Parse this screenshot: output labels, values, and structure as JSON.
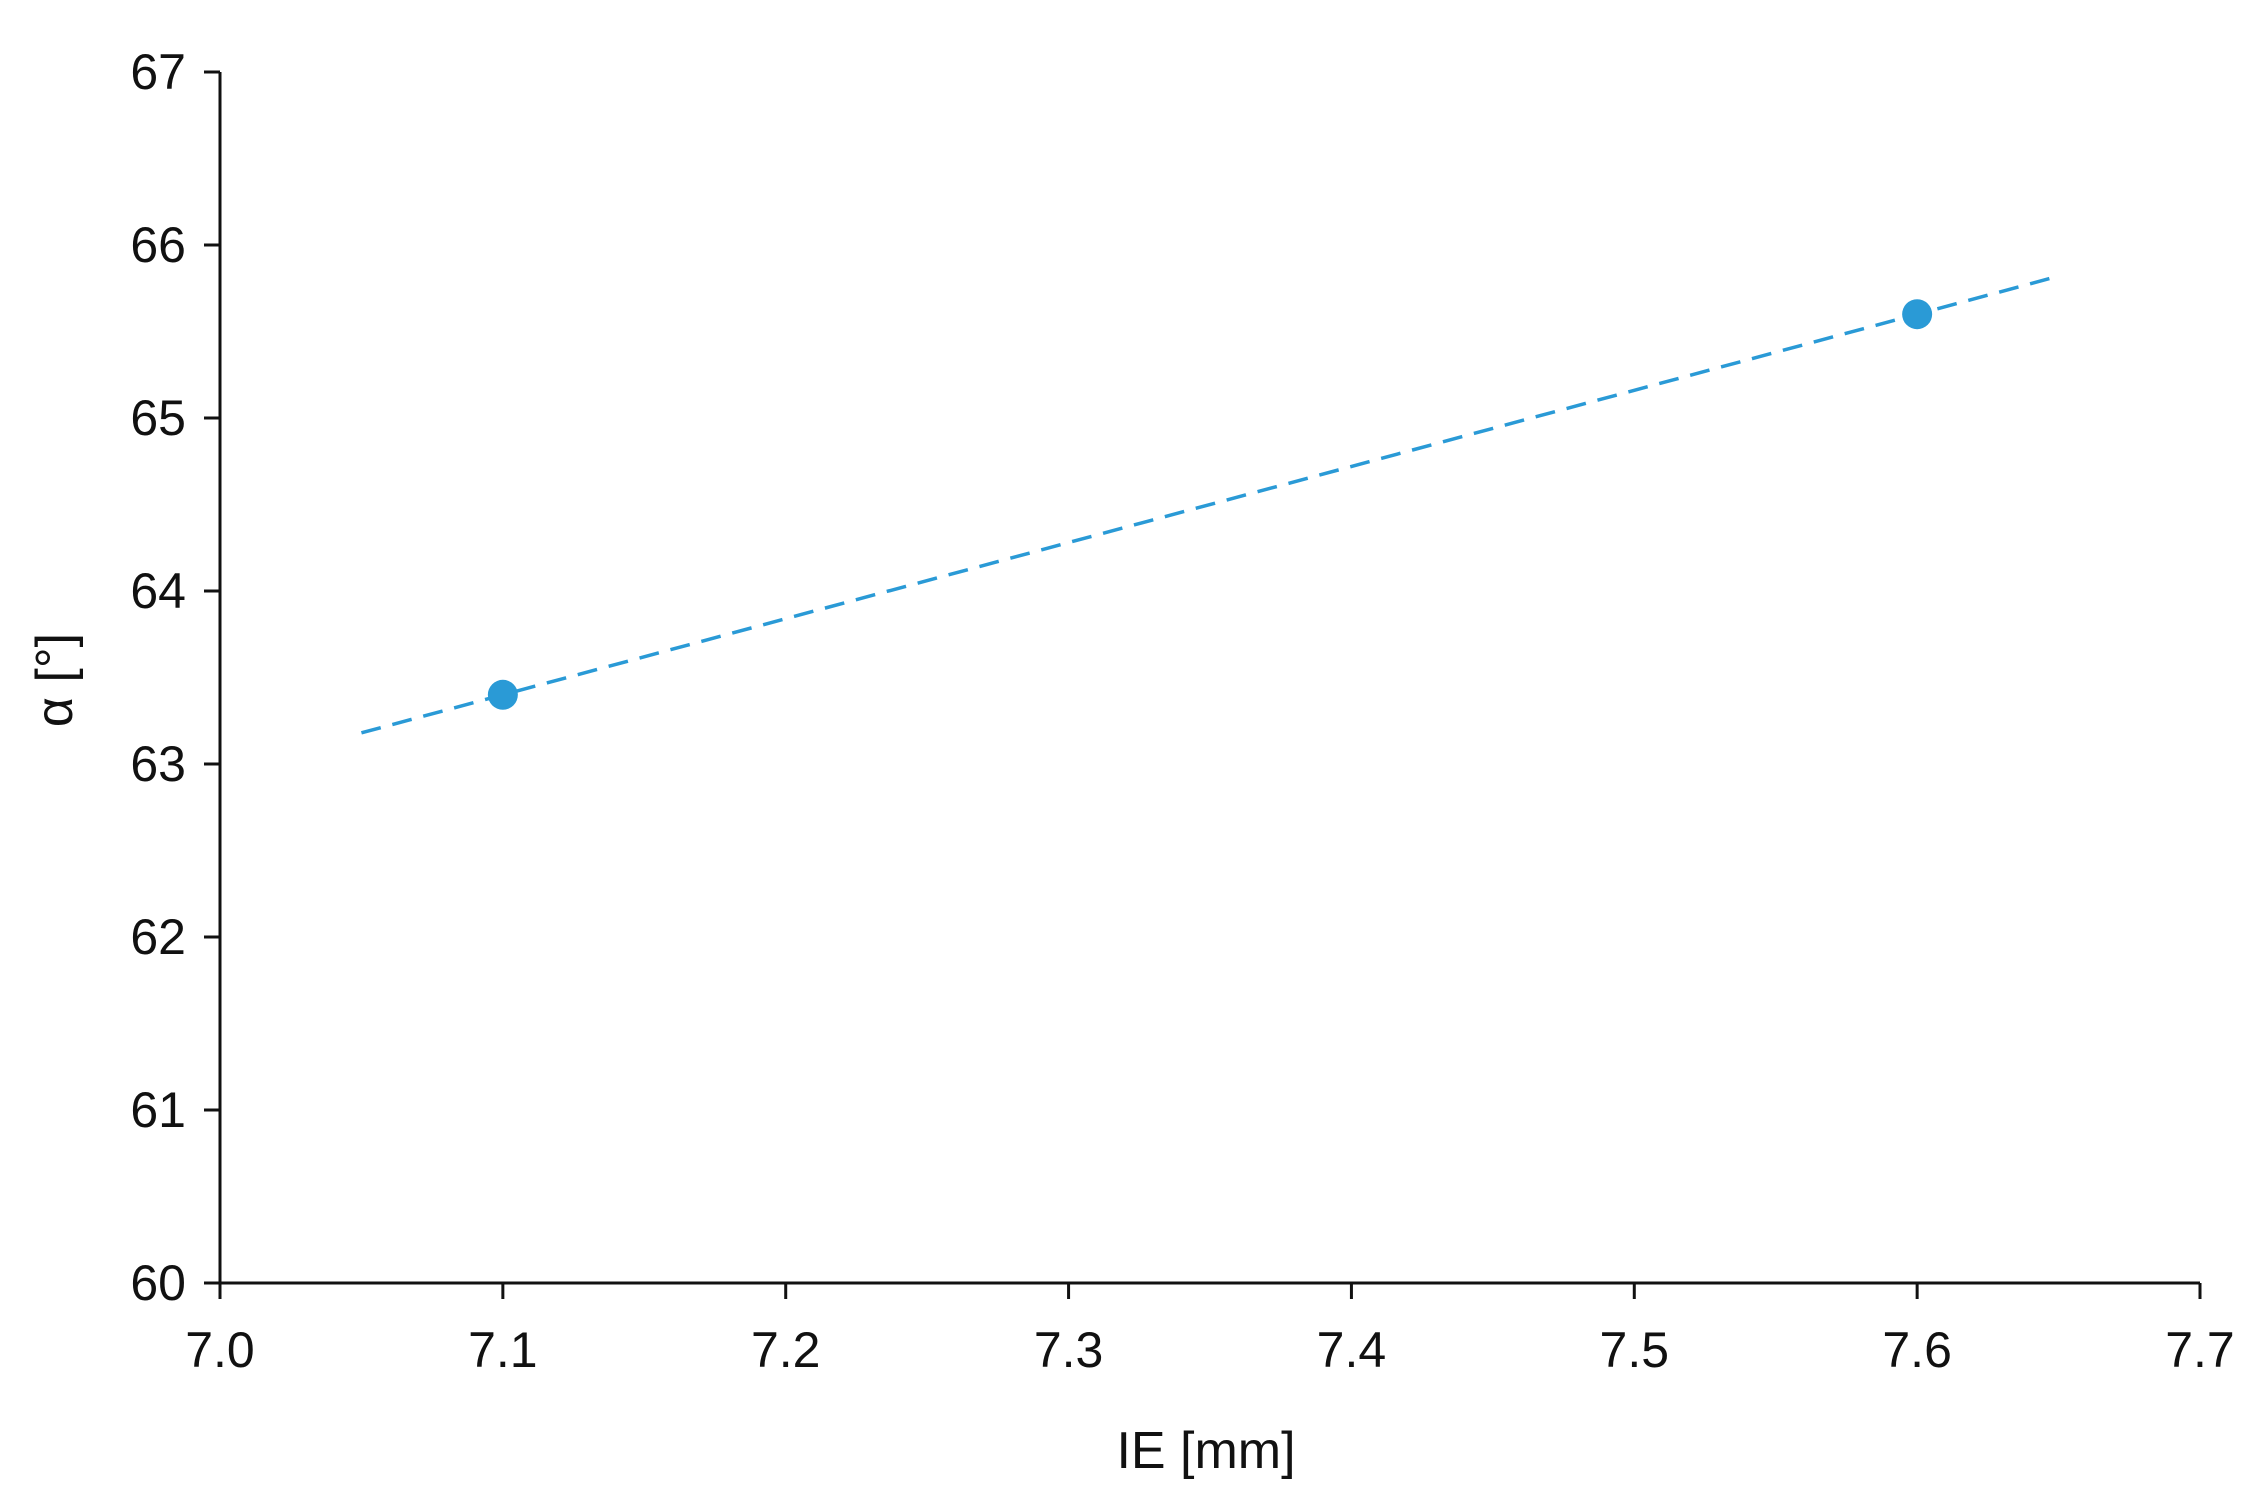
{
  "chart_data": {
    "type": "scatter",
    "title": "",
    "xlabel": "IE  [mm]",
    "ylabel": "α  [°]",
    "xlim": [
      7.0,
      7.7
    ],
    "ylim": [
      60,
      67
    ],
    "xticks": [
      "7.0",
      "7.1",
      "7.2",
      "7.3",
      "7.4",
      "7.5",
      "7.6",
      "7.7"
    ],
    "yticks": [
      "60",
      "61",
      "62",
      "63",
      "64",
      "65",
      "66",
      "67"
    ],
    "grid": false,
    "legend": "none",
    "series": [
      {
        "points": [
          {
            "x": 7.1,
            "y": 63.4
          },
          {
            "x": 7.6,
            "y": 65.6
          }
        ],
        "color": "#2a9ad6",
        "marker": "circle"
      }
    ],
    "trendline": {
      "style": "dashed",
      "color": "#2a9ad6",
      "x_range": [
        7.05,
        7.65
      ],
      "slope": 4.4,
      "intercept": 32.16
    }
  }
}
